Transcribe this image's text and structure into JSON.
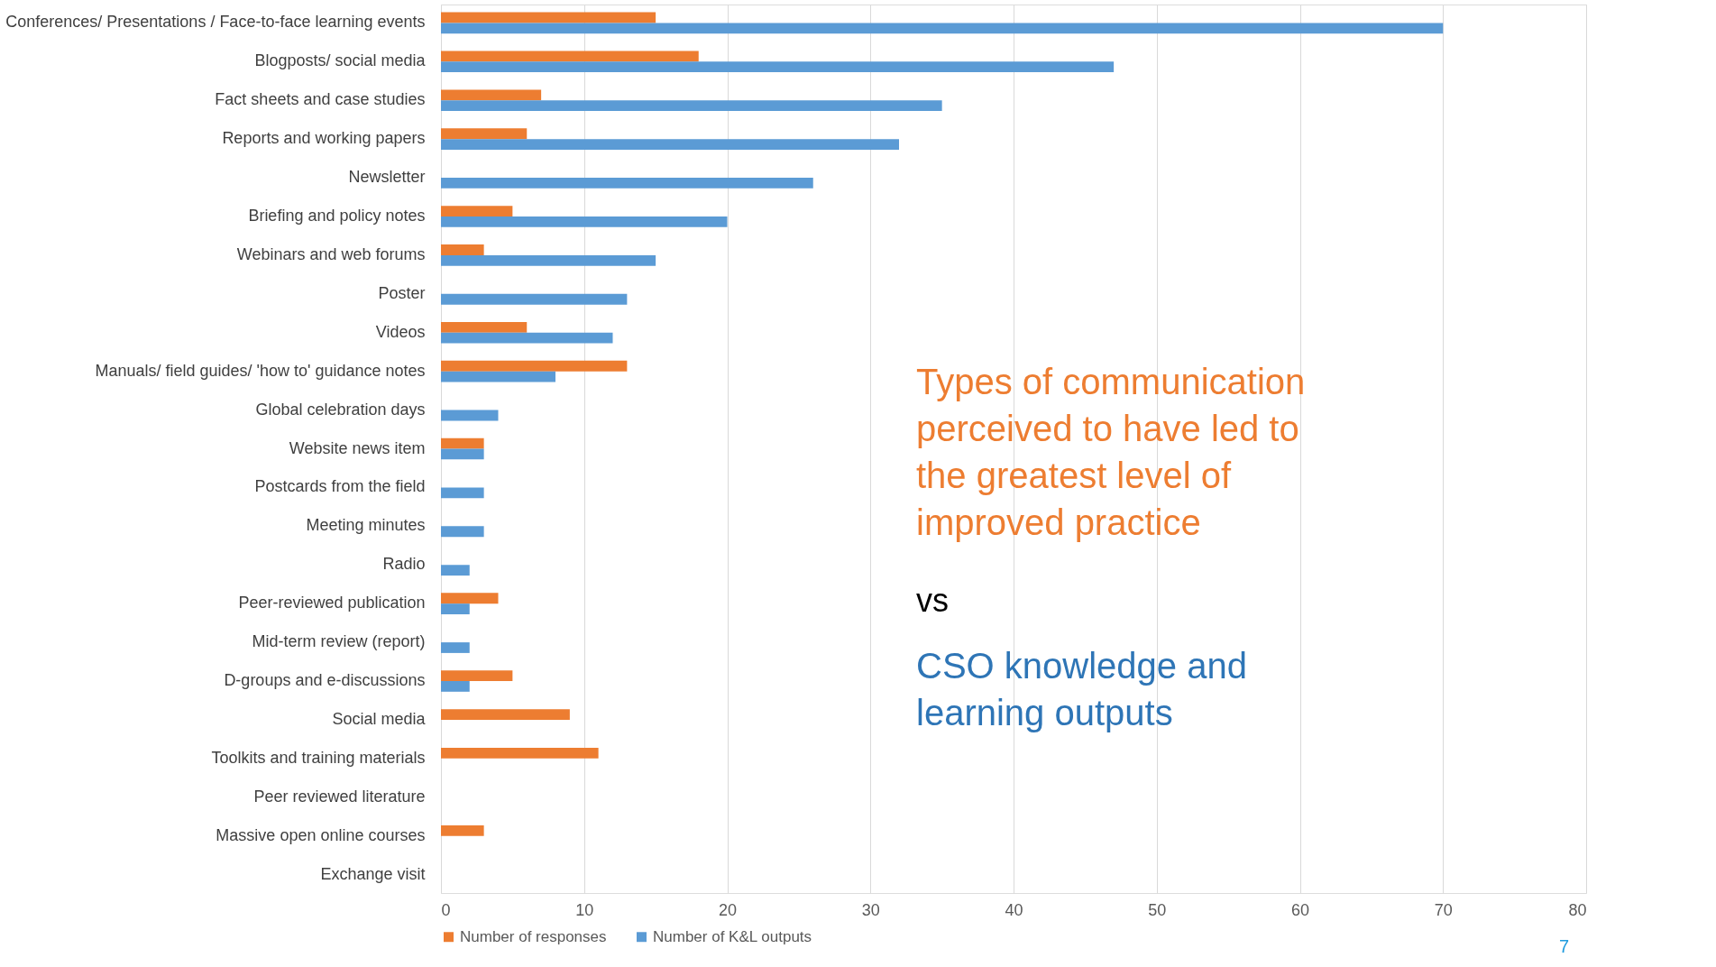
{
  "chart_data": {
    "type": "bar",
    "orientation": "horizontal",
    "categories": [
      "Conferences/ Presentations / Face-to-face learning events",
      "Blogposts/ social media",
      "Fact sheets and case studies",
      "Reports and working papers",
      "Newsletter",
      "Briefing and policy notes",
      "Webinars and web forums",
      "Poster",
      "Videos",
      "Manuals/ field guides/ 'how to' guidance notes",
      "Global celebration days",
      "Website news item",
      "Postcards from the field",
      "Meeting minutes",
      "Radio",
      "Peer-reviewed publication",
      "Mid-term review (report)",
      "D-groups and e-discussions",
      "Social media",
      "Toolkits and training materials",
      "Peer reviewed literature",
      "Massive open online courses",
      "Exchange visit"
    ],
    "series": [
      {
        "name": "Number of responses",
        "color": "#ed7d31",
        "values": [
          15,
          18,
          7,
          6,
          null,
          5,
          3,
          null,
          6,
          13,
          null,
          3,
          null,
          null,
          null,
          4,
          null,
          5,
          9,
          11,
          null,
          3,
          null
        ]
      },
      {
        "name": "Number of K&L outputs",
        "color": "#5b9bd5",
        "values": [
          70,
          47,
          35,
          32,
          26,
          20,
          15,
          13,
          12,
          8,
          4,
          3,
          3,
          3,
          2,
          2,
          2,
          2,
          null,
          null,
          null,
          null,
          null
        ]
      }
    ],
    "xlim": [
      0,
      80
    ],
    "xticks": [
      0,
      10,
      20,
      30,
      40,
      50,
      60,
      70,
      80
    ],
    "grid": "x",
    "legend": "bottom",
    "annotations": [
      "Types of communication perceived to have led to the greatest level of improved practice",
      "vs",
      "CSO knowledge and learning outputs",
      "7"
    ]
  }
}
